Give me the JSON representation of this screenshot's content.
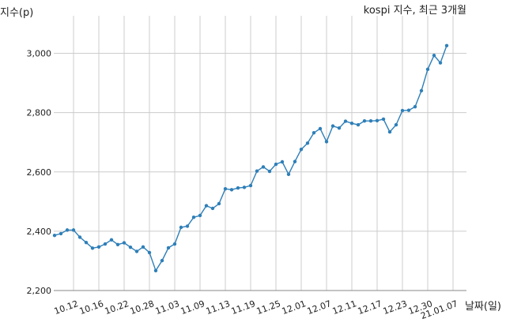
{
  "chart_data": {
    "type": "line",
    "title": "kospi 지수, 최근 3개월",
    "ylabel": "지수(p)",
    "xlabel": "날짜(일)",
    "ylim": [
      2200,
      3100
    ],
    "yticks": [
      2200,
      2400,
      2600,
      2800,
      3000
    ],
    "ytick_labels": [
      "2,200",
      "2,400",
      "2,600",
      "2,800",
      "3,000"
    ],
    "xtick_labels": [
      "10.12",
      "10.16",
      "10.22",
      "10.28",
      "11.03",
      "11.09",
      "11.13",
      "11.19",
      "11.25",
      "12.01",
      "12.07",
      "12.11",
      "12.17",
      "12.23",
      "12.30",
      "21.01.07"
    ],
    "xtick_index": [
      3,
      7,
      11,
      15,
      19,
      23,
      27,
      31,
      35,
      39,
      43,
      47,
      51,
      55,
      59,
      63
    ],
    "grid": true,
    "line_color": "#2e7fb8",
    "values": [
      2386,
      2392,
      2404,
      2404,
      2380,
      2362,
      2343,
      2347,
      2357,
      2371,
      2355,
      2361,
      2346,
      2332,
      2347,
      2328,
      2267,
      2301,
      2344,
      2357,
      2413,
      2417,
      2447,
      2453,
      2486,
      2477,
      2493,
      2543,
      2540,
      2546,
      2548,
      2554,
      2603,
      2617,
      2602,
      2626,
      2634,
      2592,
      2635,
      2676,
      2697,
      2732,
      2746,
      2702,
      2755,
      2748,
      2771,
      2764,
      2759,
      2772,
      2772,
      2773,
      2778,
      2735,
      2759,
      2807,
      2808,
      2820,
      2874,
      2946,
      2993,
      2968,
      3026
    ]
  }
}
